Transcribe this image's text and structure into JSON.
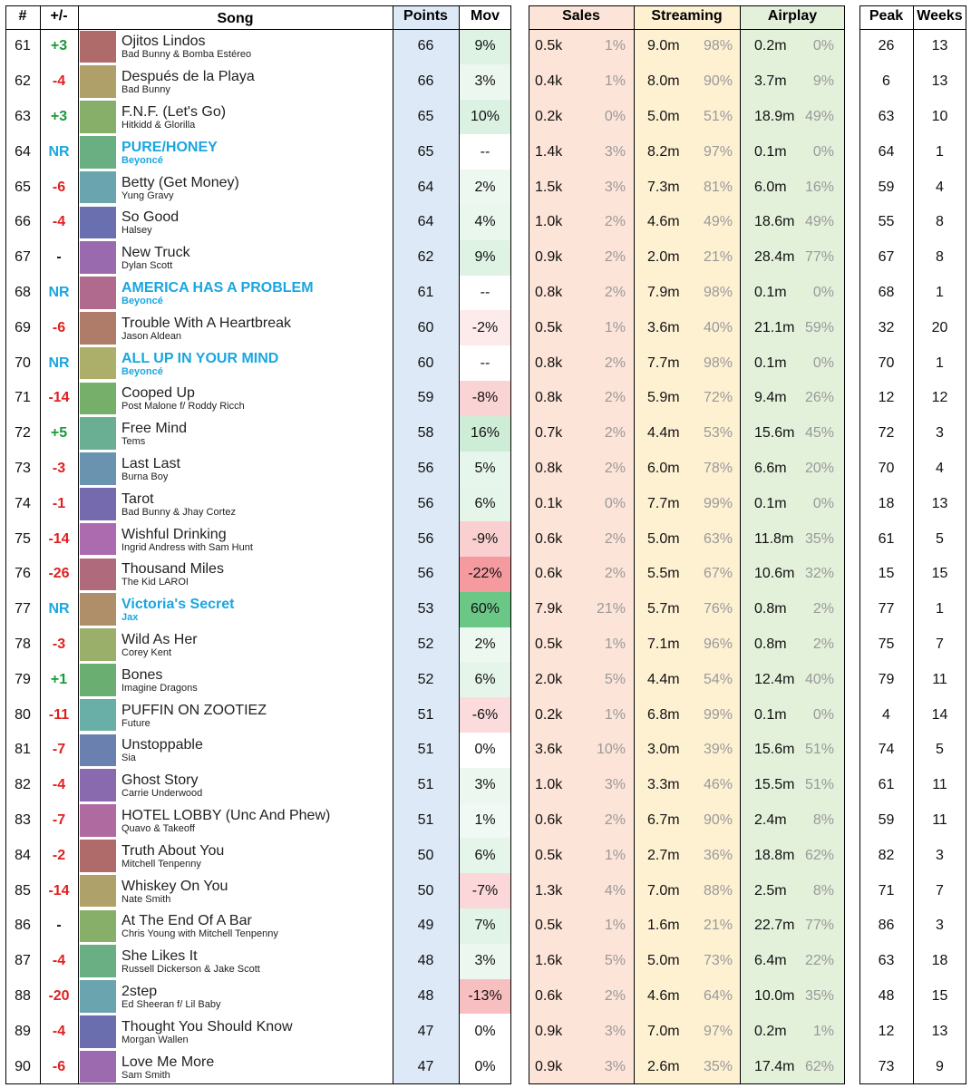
{
  "table": {
    "header": [
      "#",
      "+/-",
      "Song",
      "Points",
      "Mov",
      "Sales",
      "Streaming",
      "Airplay",
      "Peak",
      "Weeks"
    ],
    "rows": [
      [
        61,
        "+3",
        "Ojitos Lindos",
        "Bad Bunny & Bomba Estéreo",
        66,
        "9%",
        "0.5k",
        "1%",
        "9.0m",
        "98%",
        "0.2m",
        "0%",
        26,
        13
      ],
      [
        62,
        "-4",
        "Después de la Playa",
        "Bad Bunny",
        66,
        "3%",
        "0.4k",
        "1%",
        "8.0m",
        "90%",
        "3.7m",
        "9%",
        6,
        13
      ],
      [
        63,
        "+3",
        "F.N.F. (Let's Go)",
        "Hitkidd & Glorilla",
        65,
        "10%",
        "0.2k",
        "0%",
        "5.0m",
        "51%",
        "18.9m",
        "49%",
        63,
        10
      ],
      [
        64,
        "NR",
        "PURE/HONEY",
        "Beyoncé",
        65,
        "--",
        "1.4k",
        "3%",
        "8.2m",
        "97%",
        "0.1m",
        "0%",
        64,
        1
      ],
      [
        65,
        "-6",
        "Betty (Get Money)",
        "Yung Gravy",
        64,
        "2%",
        "1.5k",
        "3%",
        "7.3m",
        "81%",
        "6.0m",
        "16%",
        59,
        4
      ],
      [
        66,
        "-4",
        "So Good",
        "Halsey",
        64,
        "4%",
        "1.0k",
        "2%",
        "4.6m",
        "49%",
        "18.6m",
        "49%",
        55,
        8
      ],
      [
        67,
        "-",
        "New Truck",
        "Dylan Scott",
        62,
        "9%",
        "0.9k",
        "2%",
        "2.0m",
        "21%",
        "28.4m",
        "77%",
        67,
        8
      ],
      [
        68,
        "NR",
        "AMERICA HAS A PROBLEM",
        "Beyoncé",
        61,
        "--",
        "0.8k",
        "2%",
        "7.9m",
        "98%",
        "0.1m",
        "0%",
        68,
        1
      ],
      [
        69,
        "-6",
        "Trouble With A Heartbreak",
        "Jason Aldean",
        60,
        "-2%",
        "0.5k",
        "1%",
        "3.6m",
        "40%",
        "21.1m",
        "59%",
        32,
        20
      ],
      [
        70,
        "NR",
        "ALL UP IN YOUR MIND",
        "Beyoncé",
        60,
        "--",
        "0.8k",
        "2%",
        "7.7m",
        "98%",
        "0.1m",
        "0%",
        70,
        1
      ],
      [
        71,
        "-14",
        "Cooped Up",
        "Post Malone f/ Roddy Ricch",
        59,
        "-8%",
        "0.8k",
        "2%",
        "5.9m",
        "72%",
        "9.4m",
        "26%",
        12,
        12
      ],
      [
        72,
        "+5",
        "Free Mind",
        "Tems",
        58,
        "16%",
        "0.7k",
        "2%",
        "4.4m",
        "53%",
        "15.6m",
        "45%",
        72,
        3
      ],
      [
        73,
        "-3",
        "Last Last",
        "Burna Boy",
        56,
        "5%",
        "0.8k",
        "2%",
        "6.0m",
        "78%",
        "6.6m",
        "20%",
        70,
        4
      ],
      [
        74,
        "-1",
        "Tarot",
        "Bad Bunny & Jhay Cortez",
        56,
        "6%",
        "0.1k",
        "0%",
        "7.7m",
        "99%",
        "0.1m",
        "0%",
        18,
        13
      ],
      [
        75,
        "-14",
        "Wishful Drinking",
        "Ingrid Andress with Sam Hunt",
        56,
        "-9%",
        "0.6k",
        "2%",
        "5.0m",
        "63%",
        "11.8m",
        "35%",
        61,
        5
      ],
      [
        76,
        "-26",
        "Thousand Miles",
        "The Kid LAROI",
        56,
        "-22%",
        "0.6k",
        "2%",
        "5.5m",
        "67%",
        "10.6m",
        "32%",
        15,
        15
      ],
      [
        77,
        "NR",
        "Victoria's Secret",
        "Jax",
        53,
        "60%",
        "7.9k",
        "21%",
        "5.7m",
        "76%",
        "0.8m",
        "2%",
        77,
        1
      ],
      [
        78,
        "-3",
        "Wild As Her",
        "Corey Kent",
        52,
        "2%",
        "0.5k",
        "1%",
        "7.1m",
        "96%",
        "0.8m",
        "2%",
        75,
        7
      ],
      [
        79,
        "+1",
        "Bones",
        "Imagine Dragons",
        52,
        "6%",
        "2.0k",
        "5%",
        "4.4m",
        "54%",
        "12.4m",
        "40%",
        79,
        11
      ],
      [
        80,
        "-11",
        "PUFFIN ON ZOOTIEZ",
        "Future",
        51,
        "-6%",
        "0.2k",
        "1%",
        "6.8m",
        "99%",
        "0.1m",
        "0%",
        4,
        14
      ],
      [
        81,
        "-7",
        "Unstoppable",
        "Sia",
        51,
        "0%",
        "3.6k",
        "10%",
        "3.0m",
        "39%",
        "15.6m",
        "51%",
        74,
        5
      ],
      [
        82,
        "-4",
        "Ghost Story",
        "Carrie Underwood",
        51,
        "3%",
        "1.0k",
        "3%",
        "3.3m",
        "46%",
        "15.5m",
        "51%",
        61,
        11
      ],
      [
        83,
        "-7",
        "HOTEL LOBBY (Unc And Phew)",
        "Quavo & Takeoff",
        51,
        "1%",
        "0.6k",
        "2%",
        "6.7m",
        "90%",
        "2.4m",
        "8%",
        59,
        11
      ],
      [
        84,
        "-2",
        "Truth About You",
        "Mitchell Tenpenny",
        50,
        "6%",
        "0.5k",
        "1%",
        "2.7m",
        "36%",
        "18.8m",
        "62%",
        82,
        3
      ],
      [
        85,
        "-14",
        "Whiskey On You",
        "Nate Smith",
        50,
        "-7%",
        "1.3k",
        "4%",
        "7.0m",
        "88%",
        "2.5m",
        "8%",
        71,
        7
      ],
      [
        86,
        "-",
        "At The End Of A Bar",
        "Chris Young with Mitchell Tenpenny",
        49,
        "7%",
        "0.5k",
        "1%",
        "1.6m",
        "21%",
        "22.7m",
        "77%",
        86,
        3
      ],
      [
        87,
        "-4",
        "She Likes It",
        "Russell Dickerson & Jake Scott",
        48,
        "3%",
        "1.6k",
        "5%",
        "5.0m",
        "73%",
        "6.4m",
        "22%",
        63,
        18
      ],
      [
        88,
        "-20",
        "2step",
        "Ed Sheeran f/ Lil Baby",
        48,
        "-13%",
        "0.6k",
        "2%",
        "4.6m",
        "64%",
        "10.0m",
        "35%",
        48,
        15
      ],
      [
        89,
        "-4",
        "Thought You Should Know",
        "Morgan Wallen",
        47,
        "0%",
        "0.9k",
        "3%",
        "7.0m",
        "97%",
        "0.2m",
        "1%",
        12,
        13
      ],
      [
        90,
        "-6",
        "Love Me More",
        "Sam Smith",
        47,
        "0%",
        "0.9k",
        "3%",
        "2.6m",
        "35%",
        "17.4m",
        "62%",
        73,
        9
      ]
    ]
  }
}
